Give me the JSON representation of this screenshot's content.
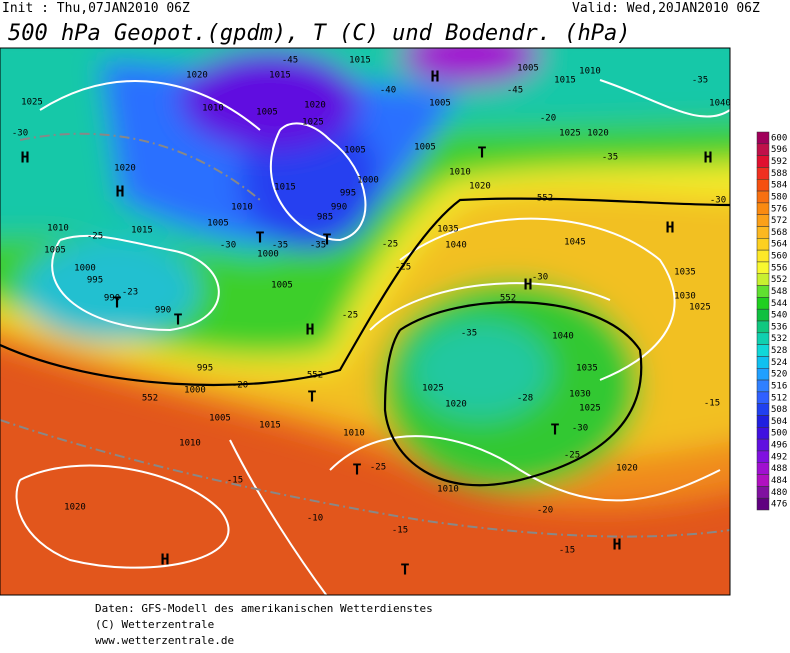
{
  "header": {
    "init": "Init : Thu,07JAN2010 06Z",
    "valid": "Valid: Wed,20JAN2010 06Z",
    "title": "500 hPa Geopot.(gpdm), T (C) und Bodendr. (hPa)"
  },
  "legend": {
    "ticks": [
      600,
      596,
      592,
      588,
      584,
      580,
      576,
      572,
      568,
      564,
      560,
      556,
      552,
      548,
      544,
      540,
      536,
      532,
      528,
      524,
      520,
      516,
      512,
      508,
      504,
      500,
      496,
      492,
      488,
      484,
      480,
      476
    ]
  },
  "map": {
    "labels": [
      "H",
      "H",
      "H",
      "H",
      "H",
      "H",
      "H",
      "H",
      "H",
      "T",
      "T",
      "T",
      "T",
      "T",
      "T",
      "T",
      "T",
      "T",
      "1025",
      "1020",
      "1015",
      "1010",
      "1005",
      "1000",
      "995",
      "990",
      "990",
      "995",
      "1000",
      "1005",
      "1010",
      "1015",
      "1020",
      "1020",
      "1015",
      "1010",
      "1005",
      "1020",
      "1025",
      "1015",
      "1005",
      "1000",
      "995",
      "990",
      "985",
      "1015",
      "1010",
      "1005",
      "1000",
      "1005",
      "1005",
      "1005",
      "1010",
      "1020",
      "1035",
      "1040",
      "1045",
      "1040",
      "1035",
      "1030",
      "1025",
      "1025",
      "1020",
      "1010",
      "1010",
      "1020",
      "1025",
      "1030",
      "1035",
      "1040",
      "1025",
      "1020",
      "1010",
      "1015",
      "1005",
      "-30",
      "-25",
      "-30",
      "-35",
      "-35",
      "-23",
      "-25",
      "-25",
      "-20",
      "-35",
      "-40",
      "-45",
      "-45",
      "-35",
      "-35",
      "-28",
      "-30",
      "-25",
      "-20",
      "-25",
      "-15",
      "-10",
      "-15",
      "-20",
      "-15",
      "-30",
      "-15",
      "-30",
      "-25",
      "552",
      "552",
      "552",
      "552"
    ]
  },
  "footer": {
    "lines": [
      "Daten: GFS-Modell des amerikanischen Wetterdienstes",
      "(C) Wetterzentrale",
      "www.wetterzentrale.de"
    ]
  }
}
